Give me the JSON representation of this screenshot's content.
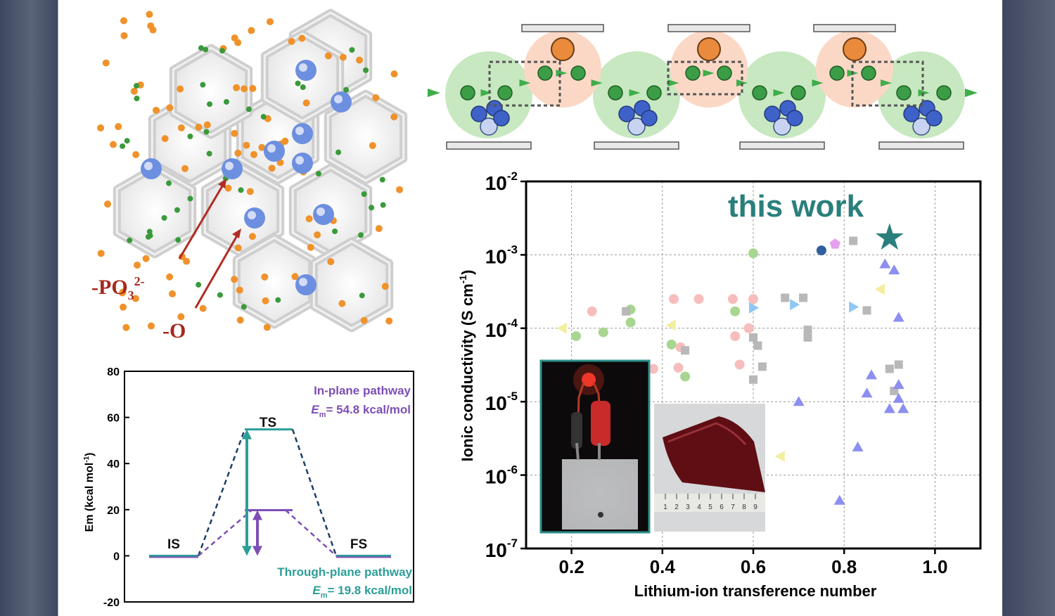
{
  "mof": {
    "label_po3": "-PO",
    "label_po3_sub": "3",
    "label_po3_sup": "2-",
    "label_o": "-O",
    "colors": {
      "frame": "#cfcfcf",
      "orange": "#f0922b",
      "green": "#3a9a3a",
      "blue": "#6d8fe0",
      "arrow": "#b02c24"
    }
  },
  "pathway": {
    "colors": {
      "green_halo": "#c7e8c0",
      "orange_halo": "#fbd8c6",
      "green_dot": "#3b9d45",
      "orange_dot": "#e98a3c",
      "blue": "#3f62c8"
    }
  },
  "chart_data": [
    {
      "type": "scatter",
      "title": "",
      "annotation": "this work",
      "xlabel": "Lithium-ion transference number",
      "ylabel_main": "Ionic conductivity (S cm",
      "ylabel_sup": "-1",
      "ylabel_close": ")",
      "xlim": [
        0.1,
        1.1
      ],
      "ylim_log10": [
        -7,
        -2
      ],
      "xticks": [
        "0.2",
        "0.4",
        "0.6",
        "0.8",
        "1.0"
      ],
      "xtick_values": [
        0.2,
        0.4,
        0.6,
        0.8,
        1.0
      ],
      "yticks": [
        {
          "base": "10",
          "exp": "-7",
          "value": -7
        },
        {
          "base": "10",
          "exp": "-6",
          "value": -6
        },
        {
          "base": "10",
          "exp": "-5",
          "value": -5
        },
        {
          "base": "10",
          "exp": "-4",
          "value": -4
        },
        {
          "base": "10",
          "exp": "-3",
          "value": -3
        },
        {
          "base": "10",
          "exp": "-2",
          "value": -2
        }
      ],
      "grid": true,
      "series": [
        {
          "marker": "star",
          "color": "#2a7f7c",
          "points": [
            [
              0.9,
              0.0017
            ]
          ]
        },
        {
          "marker": "circle",
          "color": "#a8d690",
          "points": [
            [
              0.21,
              7.8e-05
            ],
            [
              0.27,
              8.8e-05
            ],
            [
              0.33,
              0.00018
            ],
            [
              0.33,
              0.00012
            ],
            [
              0.42,
              6e-05
            ],
            [
              0.45,
              2.2e-05
            ],
            [
              0.56,
              0.00017
            ],
            [
              0.6,
              0.00105
            ]
          ]
        },
        {
          "marker": "circle",
          "color": "#f7bdbd",
          "points": [
            [
              0.245,
              0.00017
            ],
            [
              0.38,
              2.8e-05
            ],
            [
              0.425,
              0.00025
            ],
            [
              0.435,
              2.9e-05
            ],
            [
              0.44,
              5.5e-05
            ],
            [
              0.48,
              0.00025
            ],
            [
              0.555,
              0.00025
            ],
            [
              0.56,
              7.8e-05
            ],
            [
              0.57,
              3.2e-05
            ],
            [
              0.59,
              0.0001
            ],
            [
              0.6,
              0.00025
            ]
          ]
        },
        {
          "marker": "circle",
          "color": "#2f5f9e",
          "points": [
            [
              0.75,
              0.00115
            ]
          ]
        },
        {
          "marker": "pentagon",
          "color": "#e6a0ee",
          "points": [
            [
              0.78,
              0.0014
            ]
          ]
        },
        {
          "marker": "square",
          "color": "#b8b8b8",
          "points": [
            [
              0.32,
              0.00017
            ],
            [
              0.45,
              5e-05
            ],
            [
              0.6,
              7.5e-05
            ],
            [
              0.6,
              2e-05
            ],
            [
              0.61,
              5.8e-05
            ],
            [
              0.62,
              3e-05
            ],
            [
              0.67,
              0.00026
            ],
            [
              0.71,
              0.00026
            ],
            [
              0.72,
              9.5e-05
            ],
            [
              0.72,
              7.5e-05
            ],
            [
              0.82,
              0.00155
            ],
            [
              0.85,
              0.000175
            ],
            [
              0.9,
              2.8e-05
            ],
            [
              0.91,
              1.4e-05
            ],
            [
              0.92,
              3.2e-05
            ]
          ]
        },
        {
          "marker": "triangle-up",
          "color": "#8c8ef0",
          "points": [
            [
              0.7,
              1e-05
            ],
            [
              0.79,
              4.5e-07
            ],
            [
              0.83,
              2.4e-06
            ],
            [
              0.85,
              1.3e-05
            ],
            [
              0.86,
              2.3e-05
            ],
            [
              0.89,
              0.00075
            ],
            [
              0.9,
              8e-06
            ],
            [
              0.91,
              0.00062
            ],
            [
              0.92,
              0.00014
            ],
            [
              0.92,
              1.7e-05
            ],
            [
              0.92,
              1.1e-05
            ],
            [
              0.93,
              8e-06
            ]
          ]
        },
        {
          "marker": "triangle-right",
          "color": "#8fc7f2",
          "points": [
            [
              0.6,
              0.00019
            ],
            [
              0.69,
              0.00021
            ],
            [
              0.82,
              0.000195
            ]
          ]
        },
        {
          "marker": "triangle-left",
          "color": "#f3ee9e",
          "points": [
            [
              0.18,
              0.0001
            ],
            [
              0.42,
              0.00011
            ],
            [
              0.66,
              1.8e-06
            ],
            [
              0.88,
              0.00034
            ]
          ]
        }
      ],
      "inset_ruler": [
        "1",
        "2",
        "3",
        "4",
        "5",
        "6",
        "7",
        "8",
        "9"
      ]
    },
    {
      "type": "line",
      "title": "",
      "ylabel_main": "Em (kcal mol",
      "ylabel_sup": "-1",
      "ylabel_close": ")",
      "ylim": [
        -20,
        80
      ],
      "yticks": [
        "80",
        "60",
        "40",
        "20",
        "0",
        "-20"
      ],
      "ytick_values": [
        80,
        60,
        40,
        20,
        0,
        -20
      ],
      "states": [
        "IS",
        "TS",
        "FS"
      ],
      "series": [
        {
          "name": "In-plane pathway",
          "em_label": "E",
          "em_sub": "m",
          "em_value": "= 54.8 kcal/mol",
          "color": "#7d4fb5",
          "dashed_color": "#1d3f66",
          "values": [
            0,
            54.8,
            0
          ]
        },
        {
          "name": "Through-plane pathway",
          "em_label": "E",
          "em_sub": "m",
          "em_value": "= 19.8 kcal/mol",
          "color": "#2c9e98",
          "dashed_color": "#7d4fb5",
          "values": [
            0,
            19.8,
            0
          ]
        }
      ]
    }
  ]
}
